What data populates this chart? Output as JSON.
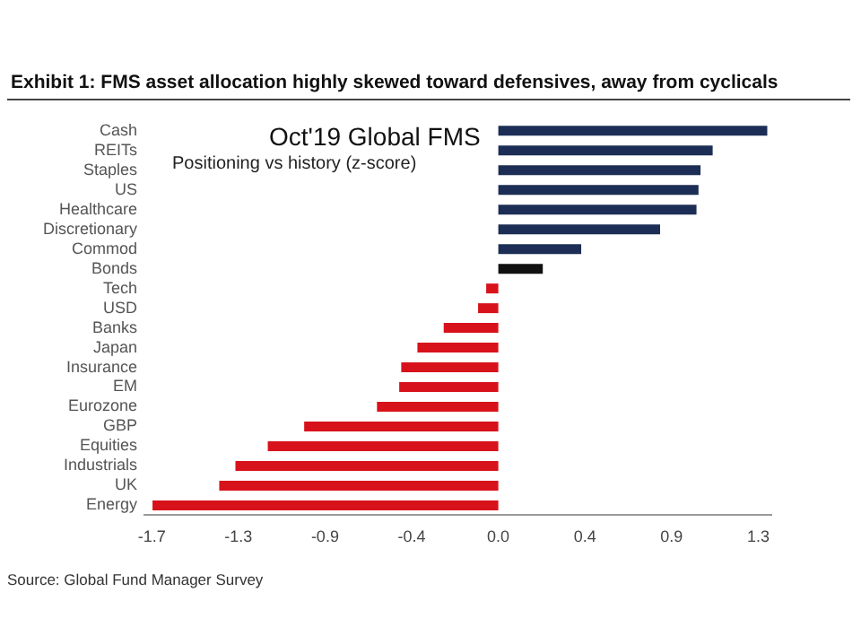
{
  "chart_data": {
    "type": "bar",
    "orientation": "horizontal",
    "title": "Exhibit 1: FMS asset allocation highly skewed toward defensives, away from cyclicals",
    "subtitle": "Oct'19 Global FMS",
    "annotations": [
      "Positioning vs history (z-score)",
      "Source: Global Fund Manager Survey"
    ],
    "categories": [
      "Cash",
      "REITs",
      "Staples",
      "US",
      "Healthcare",
      "Discretionary",
      "Commod",
      "Bonds",
      "Tech",
      "USD",
      "Banks",
      "Japan",
      "Insurance",
      "EM",
      "Eurozone",
      "GBP",
      "Equities",
      "Industrials",
      "UK",
      "Energy"
    ],
    "values": [
      1.33,
      1.06,
      1.0,
      0.99,
      0.98,
      0.8,
      0.41,
      0.22,
      -0.06,
      -0.1,
      -0.27,
      -0.4,
      -0.48,
      -0.49,
      -0.6,
      -0.96,
      -1.14,
      -1.3,
      -1.38,
      -1.71
    ],
    "colors": [
      "#1c2e55",
      "#1c2e55",
      "#1c2e55",
      "#1c2e55",
      "#1c2e55",
      "#1c2e55",
      "#1c2e55",
      "#111111",
      "#d7121b",
      "#d7121b",
      "#d7121b",
      "#d7121b",
      "#d7121b",
      "#d7121b",
      "#d7121b",
      "#d7121b",
      "#d7121b",
      "#d7121b",
      "#d7121b",
      "#d7121b"
    ],
    "xlim": [
      -1.75,
      1.35
    ],
    "xticks": [
      {
        "value": -1.714,
        "label": "-1.7"
      },
      {
        "value": -1.286,
        "label": "-1.3"
      },
      {
        "value": -0.857,
        "label": "-0.9"
      },
      {
        "value": -0.429,
        "label": "-0.4"
      },
      {
        "value": 0,
        "label": "0.0"
      },
      {
        "value": 0.429,
        "label": "0.4"
      },
      {
        "value": 0.857,
        "label": "0.9"
      },
      {
        "value": 1.286,
        "label": "1.3"
      }
    ],
    "grid": false,
    "legend": false
  }
}
